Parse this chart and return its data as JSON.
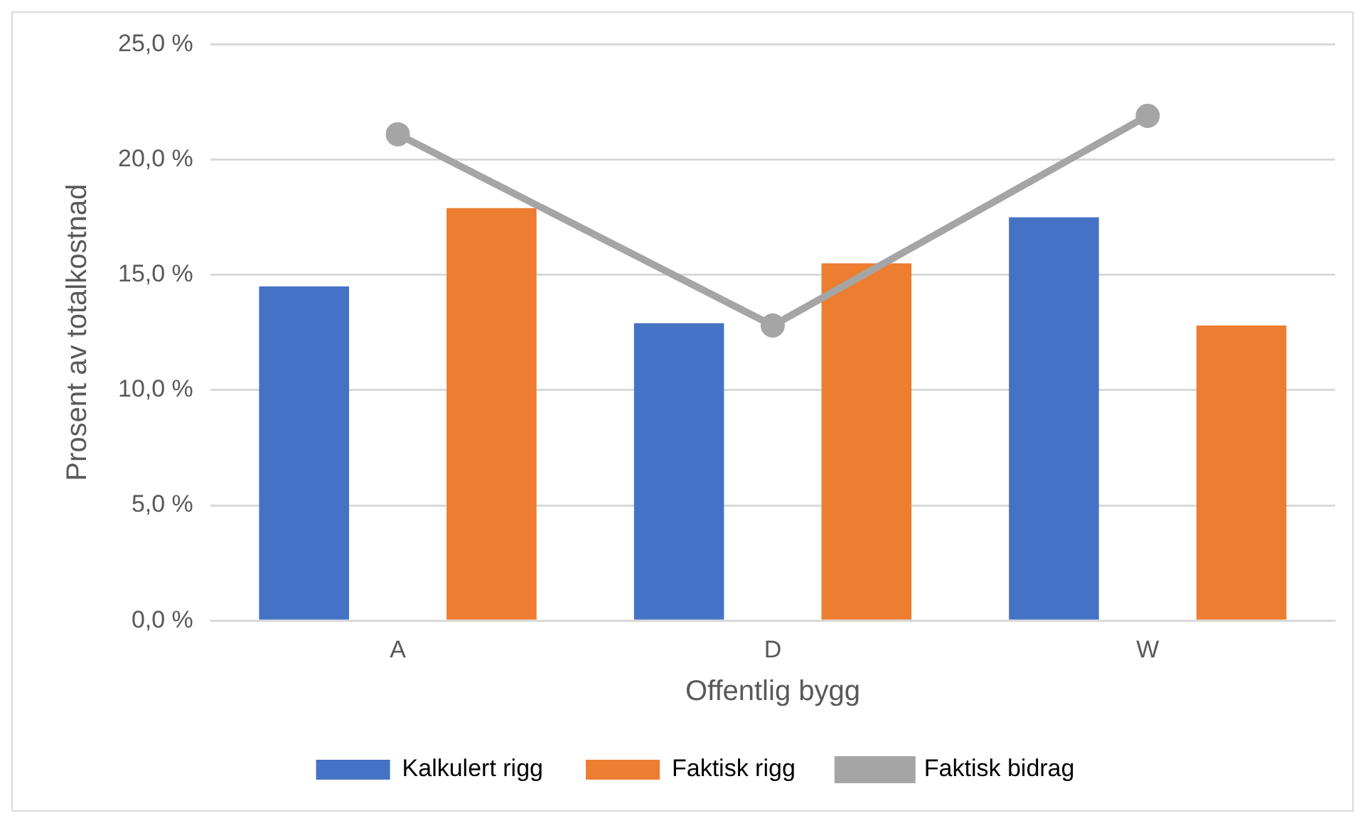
{
  "chart_data": {
    "type": "bar",
    "xlabel": "Offentlig bygg",
    "ylabel": "Prosent av totalkostnad",
    "categories": [
      "A",
      "D",
      "W"
    ],
    "series": [
      {
        "name": "Kalkulert rigg",
        "color": "#4472c4",
        "values": [
          14.5,
          12.9,
          17.5
        ]
      },
      {
        "name": "Faktisk rigg",
        "color": "#ed7d31",
        "values": [
          17.9,
          15.5,
          12.8
        ]
      },
      {
        "name": "Faktisk bidrag",
        "type": "line",
        "color": "#a5a5a5",
        "values": [
          21.1,
          12.8,
          21.9
        ],
        "marker": "circle"
      }
    ],
    "ylim": [
      0,
      25
    ],
    "yticks": [
      {
        "value": 0,
        "label": "0,0 %"
      },
      {
        "value": 5,
        "label": "5,0 %"
      },
      {
        "value": 10,
        "label": "10,0 %"
      },
      {
        "value": 15,
        "label": "15,0 %"
      },
      {
        "value": 20,
        "label": "20,0 %"
      },
      {
        "value": 25,
        "label": "25,0 %"
      }
    ],
    "grid": "y",
    "legend": "bottom"
  }
}
